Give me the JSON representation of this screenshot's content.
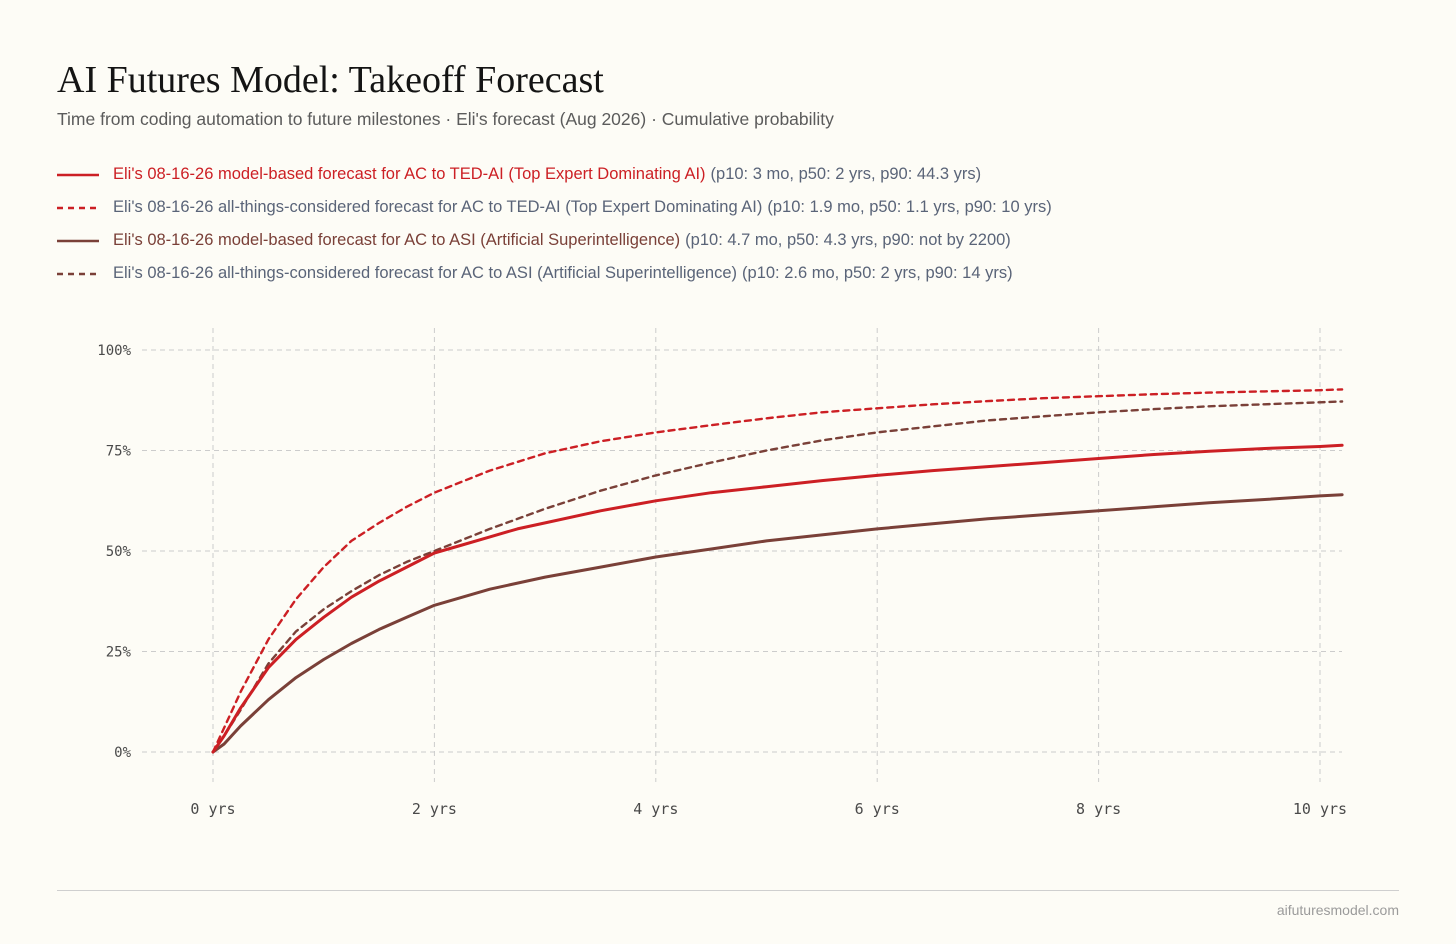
{
  "header": {
    "title": "AI Futures Model: Takeoff Forecast",
    "subtitle": "Time from coding automation to future milestones · Eli's forecast (Aug 2026) · Cumulative probability"
  },
  "footer": {
    "credit": "aifuturesmodel.com"
  },
  "colors": {
    "red": "#cc1f24",
    "brown": "#7a4038",
    "grid": "#cccccc",
    "background": "#fdfcf6"
  },
  "chart_data": {
    "type": "line",
    "title": "AI Futures Model: Takeoff Forecast",
    "xlabel": "",
    "ylabel": "",
    "x_unit": "years",
    "xlim": [
      0,
      10.2
    ],
    "ylim": [
      0,
      100
    ],
    "x_ticks": [
      {
        "value": 0,
        "label": "0 yrs"
      },
      {
        "value": 2,
        "label": "2 yrs"
      },
      {
        "value": 4,
        "label": "4 yrs"
      },
      {
        "value": 6,
        "label": "6 yrs"
      },
      {
        "value": 8,
        "label": "8 yrs"
      },
      {
        "value": 10,
        "label": "10 yrs"
      }
    ],
    "y_ticks": [
      {
        "value": 0,
        "label": "0%"
      },
      {
        "value": 25,
        "label": "25%"
      },
      {
        "value": 50,
        "label": "50%"
      },
      {
        "value": 75,
        "label": "75%"
      },
      {
        "value": 100,
        "label": "100%"
      }
    ],
    "grid": "dashed, both axes",
    "legend_position": "top-left, above plot",
    "series": [
      {
        "name": "Eli's 08-16-26 model-based forecast for AC to TED-AI (Top Expert Dominating AI)",
        "stats": "(p10: 3 mo, p50: 2 yrs, p90: 44.3 yrs)",
        "color": "#cc1f24",
        "style": "solid",
        "name_color": "#cc1f24",
        "x": [
          0,
          0.1,
          0.25,
          0.5,
          0.75,
          1,
          1.25,
          1.5,
          1.75,
          2,
          2.25,
          2.5,
          2.75,
          3,
          3.5,
          4,
          4.5,
          5,
          5.5,
          6,
          6.5,
          7,
          7.5,
          8,
          8.5,
          9,
          9.5,
          10,
          10.2
        ],
        "y": [
          0,
          4,
          11,
          21,
          28,
          33.5,
          38.5,
          42.5,
          46,
          49.5,
          51.5,
          53.5,
          55.5,
          57,
          60,
          62.5,
          64.5,
          66,
          67.5,
          68.8,
          70,
          71,
          72,
          73,
          74,
          74.8,
          75.5,
          76,
          76.3
        ]
      },
      {
        "name": "Eli's 08-16-26 all-things-considered forecast for AC to TED-AI (Top Expert Dominating AI)",
        "stats": "(p10: 1.9 mo, p50: 1.1 yrs, p90: 10 yrs)",
        "color": "#cc1f24",
        "style": "dashed",
        "name_color": "#5a6478",
        "x": [
          0,
          0.1,
          0.25,
          0.5,
          0.75,
          1,
          1.25,
          1.5,
          1.75,
          2,
          2.5,
          3,
          3.5,
          4,
          4.5,
          5,
          5.5,
          6,
          6.5,
          7,
          7.5,
          8,
          8.5,
          9,
          9.5,
          10,
          10.2
        ],
        "y": [
          0,
          6,
          15,
          28,
          38,
          46,
          52.5,
          57,
          61,
          64.5,
          70,
          74.3,
          77.3,
          79.5,
          81.3,
          83,
          84.5,
          85.5,
          86.5,
          87.3,
          88,
          88.5,
          89,
          89.4,
          89.7,
          90,
          90.2
        ]
      },
      {
        "name": "Eli's 08-16-26 model-based forecast for AC to ASI (Artificial Superintelligence)",
        "stats": "(p10: 4.7 mo, p50: 4.3 yrs, p90: not by 2200)",
        "color": "#7a4038",
        "style": "solid",
        "name_color": "#7a4038",
        "x": [
          0,
          0.1,
          0.25,
          0.5,
          0.75,
          1,
          1.25,
          1.5,
          1.75,
          2,
          2.5,
          3,
          3.5,
          4,
          4.5,
          5,
          5.5,
          6,
          6.5,
          7,
          7.5,
          8,
          8.5,
          9,
          9.5,
          10,
          10.2
        ],
        "y": [
          0,
          2,
          6.5,
          13,
          18.5,
          23,
          27,
          30.5,
          33.5,
          36.5,
          40.5,
          43.5,
          46,
          48.5,
          50.5,
          52.5,
          54,
          55.5,
          56.8,
          58,
          59,
          60,
          61,
          62,
          62.8,
          63.7,
          64
        ]
      },
      {
        "name": "Eli's 08-16-26 all-things-considered forecast for AC to ASI (Artificial Superintelligence)",
        "stats": "(p10: 2.6 mo, p50: 2 yrs, p90: 14 yrs)",
        "color": "#7a4038",
        "style": "dashed",
        "name_color": "#5a6478",
        "x": [
          0,
          0.1,
          0.25,
          0.5,
          0.75,
          1,
          1.25,
          1.5,
          1.75,
          2,
          2.5,
          3,
          3.5,
          4,
          4.5,
          5,
          5.5,
          6,
          6.5,
          7,
          7.5,
          8,
          8.5,
          9,
          9.5,
          10,
          10.2
        ],
        "y": [
          0,
          4,
          10.5,
          22,
          30,
          35.5,
          40,
          44,
          47.3,
          50,
          55.5,
          60.5,
          65,
          68.8,
          72,
          75,
          77.5,
          79.5,
          81,
          82.5,
          83.5,
          84.5,
          85.3,
          86,
          86.5,
          87,
          87.2
        ]
      }
    ]
  }
}
